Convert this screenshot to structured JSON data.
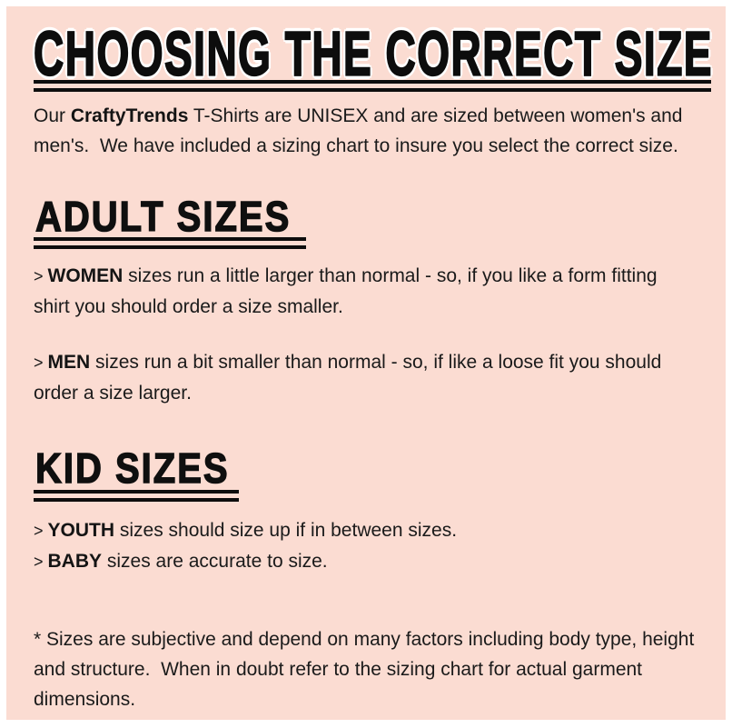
{
  "page": {
    "title": "CHOOSING THE CORRECT SIZE",
    "colors": {
      "background": "#fbdcd2",
      "border": "#ffffff",
      "ink": "#1a1a1a",
      "heading_ink": "#0d0d0d"
    }
  },
  "intro": {
    "pre": "Our ",
    "brand": "CraftyTrends",
    "post": " T-Shirts are UNISEX and are sized between women's and men's.  We have included a sizing chart to insure you select the correct size."
  },
  "sections": {
    "adult": {
      "heading": "ADULT SIZES",
      "bullets": {
        "women": {
          "marker": "> ",
          "term": "WOMEN",
          "text": " sizes run a little larger than normal - so, if you like a form fitting shirt you should order a size smaller."
        },
        "men": {
          "marker": "> ",
          "term": "MEN",
          "text": " sizes run a bit smaller than normal - so, if like a loose fit you should order a size larger."
        }
      }
    },
    "kid": {
      "heading": "KID SIZES",
      "bullets": {
        "youth": {
          "marker": "> ",
          "term": "YOUTH",
          "text": " sizes should size up if in between sizes."
        },
        "baby": {
          "marker": "> ",
          "term": "BABY",
          "text": " sizes are accurate to size."
        }
      }
    }
  },
  "footnote": "* Sizes are subjective and depend on many factors including body type, height and structure.  When in doubt refer to the sizing chart for actual garment dimensions."
}
